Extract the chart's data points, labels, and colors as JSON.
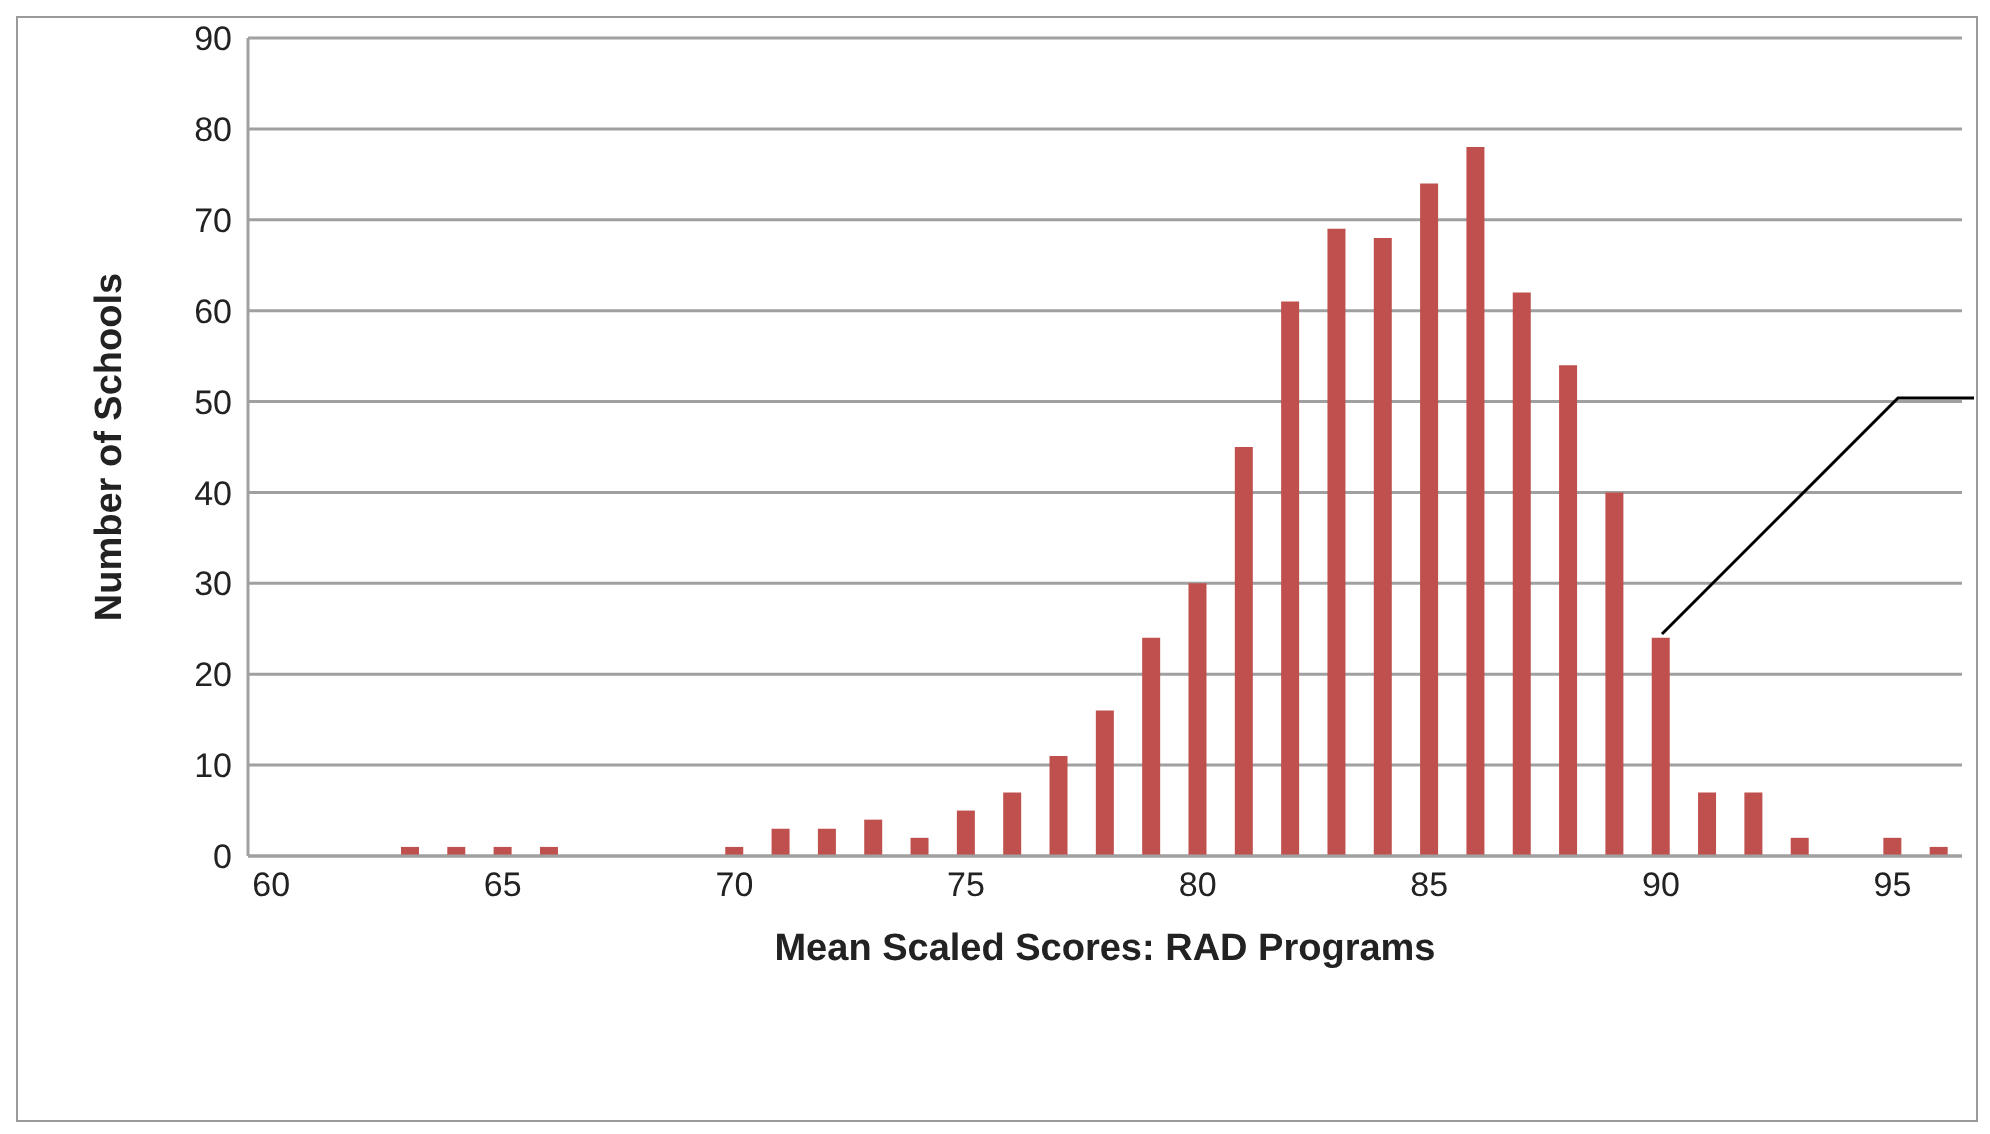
{
  "chart_data": {
    "type": "bar",
    "xlabel": "Mean Scaled Scores: RAD Programs",
    "ylabel": "Number of Schools",
    "x": [
      63,
      64,
      65,
      66,
      70,
      71,
      72,
      73,
      74,
      75,
      76,
      77,
      78,
      79,
      80,
      81,
      82,
      83,
      84,
      85,
      86,
      87,
      88,
      89,
      90,
      91,
      92,
      93,
      95,
      96
    ],
    "values": [
      1,
      1,
      1,
      1,
      1,
      3,
      3,
      4,
      2,
      5,
      7,
      11,
      16,
      24,
      30,
      45,
      61,
      69,
      68,
      74,
      78,
      62,
      54,
      40,
      24,
      7,
      7,
      2,
      2,
      1
    ],
    "color": "#c0504d",
    "xlim": [
      59.5,
      96.5
    ],
    "xticks": [
      60,
      65,
      70,
      75,
      80,
      85,
      90,
      95
    ],
    "ylim": [
      0,
      90
    ],
    "yticks": [
      0,
      10,
      20,
      30,
      40,
      50,
      60,
      70,
      80,
      90
    ],
    "grid": "y"
  }
}
